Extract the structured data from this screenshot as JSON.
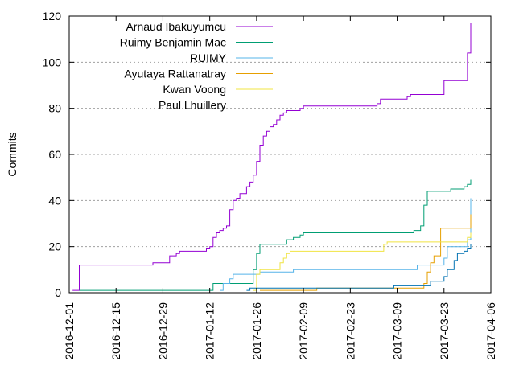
{
  "chart_data": {
    "type": "line",
    "title": "",
    "xlabel": "",
    "ylabel": "Commits",
    "xlim": [
      "2016-12-01",
      "2017-04-06"
    ],
    "ylim": [
      0,
      120
    ],
    "grid": true,
    "legend_placement": "top-left",
    "x_ticks": [
      "2016-12-01",
      "2016-12-15",
      "2016-12-29",
      "2017-01-12",
      "2017-01-26",
      "2017-02-09",
      "2017-02-23",
      "2017-03-09",
      "2017-03-23",
      "2017-04-06"
    ],
    "y_ticks": [
      0,
      20,
      40,
      60,
      80,
      100,
      120
    ],
    "series": [
      {
        "name": "Arnaud Ibakuyumcu",
        "color": "#9400d3",
        "points": [
          [
            "2016-12-02",
            1
          ],
          [
            "2016-12-04",
            2
          ],
          [
            "2016-12-04",
            12
          ],
          [
            "2016-12-20",
            12
          ],
          [
            "2016-12-26",
            13
          ],
          [
            "2016-12-30",
            13
          ],
          [
            "2016-12-31",
            16
          ],
          [
            "2017-01-02",
            17
          ],
          [
            "2017-01-03",
            18
          ],
          [
            "2017-01-04",
            18
          ],
          [
            "2017-01-11",
            19
          ],
          [
            "2017-01-12",
            20
          ],
          [
            "2017-01-13",
            24
          ],
          [
            "2017-01-14",
            26
          ],
          [
            "2017-01-15",
            27
          ],
          [
            "2017-01-16",
            28
          ],
          [
            "2017-01-17",
            29
          ],
          [
            "2017-01-18",
            36
          ],
          [
            "2017-01-19",
            40
          ],
          [
            "2017-01-20",
            41
          ],
          [
            "2017-01-21",
            43
          ],
          [
            "2017-01-22",
            43
          ],
          [
            "2017-01-23",
            46
          ],
          [
            "2017-01-24",
            48
          ],
          [
            "2017-01-25",
            51
          ],
          [
            "2017-01-26",
            57
          ],
          [
            "2017-01-27",
            64
          ],
          [
            "2017-01-28",
            68
          ],
          [
            "2017-01-29",
            70
          ],
          [
            "2017-01-30",
            72
          ],
          [
            "2017-01-31",
            73
          ],
          [
            "2017-02-01",
            75
          ],
          [
            "2017-02-02",
            77
          ],
          [
            "2017-02-03",
            78
          ],
          [
            "2017-02-04",
            79
          ],
          [
            "2017-02-08",
            80
          ],
          [
            "2017-02-09",
            81
          ],
          [
            "2017-02-15",
            81
          ],
          [
            "2017-03-03",
            82
          ],
          [
            "2017-03-04",
            84
          ],
          [
            "2017-03-09",
            84
          ],
          [
            "2017-03-12",
            85
          ],
          [
            "2017-03-13",
            86
          ],
          [
            "2017-03-22",
            86
          ],
          [
            "2017-03-23",
            92
          ],
          [
            "2017-03-29",
            92
          ],
          [
            "2017-03-30",
            98
          ],
          [
            "2017-03-30",
            104
          ],
          [
            "2017-03-31",
            117
          ]
        ]
      },
      {
        "name": "Ruimy Benjamin Mac",
        "color": "#009e73",
        "points": [
          [
            "2016-12-04",
            1
          ],
          [
            "2017-01-12",
            1
          ],
          [
            "2017-01-13",
            4
          ],
          [
            "2017-01-24",
            4
          ],
          [
            "2017-01-25",
            10
          ],
          [
            "2017-01-26",
            17
          ],
          [
            "2017-01-27",
            21
          ],
          [
            "2017-02-03",
            21
          ],
          [
            "2017-02-04",
            23
          ],
          [
            "2017-02-06",
            24
          ],
          [
            "2017-02-08",
            25
          ],
          [
            "2017-02-09",
            26
          ],
          [
            "2017-03-13",
            26
          ],
          [
            "2017-03-14",
            27
          ],
          [
            "2017-03-16",
            29
          ],
          [
            "2017-03-17",
            38
          ],
          [
            "2017-03-18",
            44
          ],
          [
            "2017-03-23",
            44
          ],
          [
            "2017-03-25",
            45
          ],
          [
            "2017-03-29",
            46
          ],
          [
            "2017-03-30",
            46
          ],
          [
            "2017-03-30",
            47
          ],
          [
            "2017-03-31",
            49
          ]
        ]
      },
      {
        "name": "RUIMY",
        "color": "#56b4e9",
        "points": [
          [
            "2017-01-15",
            1
          ],
          [
            "2017-01-16",
            4
          ],
          [
            "2017-01-18",
            6
          ],
          [
            "2017-01-19",
            8
          ],
          [
            "2017-01-26",
            8
          ],
          [
            "2017-01-27",
            9
          ],
          [
            "2017-02-05",
            9
          ],
          [
            "2017-02-06",
            10
          ],
          [
            "2017-03-14",
            10
          ],
          [
            "2017-03-15",
            12
          ],
          [
            "2017-03-22",
            12
          ],
          [
            "2017-03-23",
            15
          ],
          [
            "2017-03-24",
            20
          ],
          [
            "2017-03-30",
            20
          ],
          [
            "2017-03-30",
            23
          ],
          [
            "2017-03-31",
            41
          ]
        ]
      },
      {
        "name": "Ayutaya Rattanatray",
        "color": "#e69f00",
        "points": [
          [
            "2017-01-27",
            1
          ],
          [
            "2017-02-10",
            1
          ],
          [
            "2017-02-13",
            2
          ],
          [
            "2017-03-16",
            2
          ],
          [
            "2017-03-17",
            4
          ],
          [
            "2017-03-18",
            9
          ],
          [
            "2017-03-19",
            13
          ],
          [
            "2017-03-20",
            16
          ],
          [
            "2017-03-22",
            28
          ],
          [
            "2017-03-30",
            28
          ],
          [
            "2017-03-31",
            34
          ]
        ]
      },
      {
        "name": "Kwan Voong",
        "color": "#f0e442",
        "points": [
          [
            "2017-01-25",
            1
          ],
          [
            "2017-01-26",
            8
          ],
          [
            "2017-01-27",
            10
          ],
          [
            "2017-02-01",
            10
          ],
          [
            "2017-02-02",
            13
          ],
          [
            "2017-02-03",
            15
          ],
          [
            "2017-02-04",
            17
          ],
          [
            "2017-02-05",
            18
          ],
          [
            "2017-03-03",
            18
          ],
          [
            "2017-03-05",
            21
          ],
          [
            "2017-03-06",
            22
          ],
          [
            "2017-03-29",
            22
          ],
          [
            "2017-03-30",
            24
          ],
          [
            "2017-03-31",
            26
          ]
        ]
      },
      {
        "name": "Paul Lhuillery",
        "color": "#0072b2",
        "points": [
          [
            "2017-01-23",
            1
          ],
          [
            "2017-01-24",
            2
          ],
          [
            "2017-02-14",
            2
          ],
          [
            "2017-03-08",
            3
          ],
          [
            "2017-03-18",
            3
          ],
          [
            "2017-03-19",
            5
          ],
          [
            "2017-03-22",
            5
          ],
          [
            "2017-03-23",
            7
          ],
          [
            "2017-03-24",
            10
          ],
          [
            "2017-03-26",
            14
          ],
          [
            "2017-03-27",
            17
          ],
          [
            "2017-03-29",
            18
          ],
          [
            "2017-03-30",
            19
          ],
          [
            "2017-03-31",
            21
          ]
        ]
      }
    ]
  }
}
